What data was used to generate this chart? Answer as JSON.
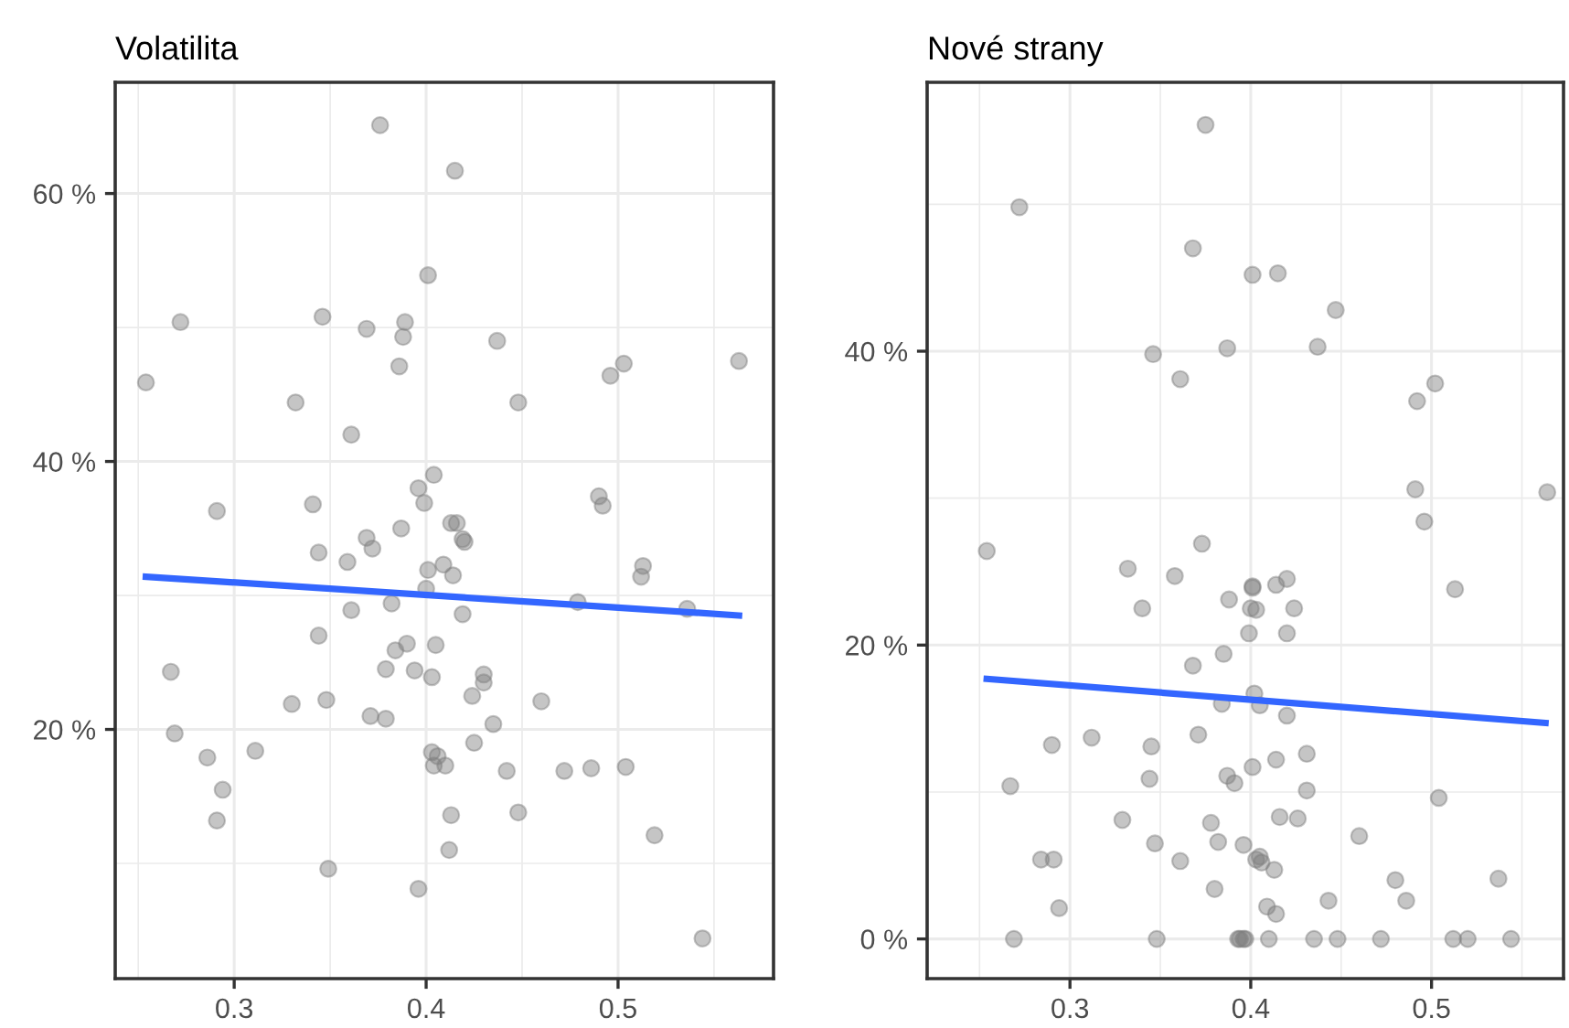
{
  "chart_data": [
    {
      "type": "scatter",
      "title": "Volatilita",
      "xlim": [
        0.238,
        0.581
      ],
      "ylim": [
        1.4,
        68.3
      ],
      "xticks": [
        0.3,
        0.4,
        0.5
      ],
      "yticks": [
        {
          "value": 20,
          "label": "20 %"
        },
        {
          "value": 40,
          "label": "40 %"
        },
        {
          "value": 60,
          "label": "60 %"
        }
      ],
      "grid": true,
      "marker": "circle",
      "series": [
        {
          "color": "#7f7f7f",
          "x": [
            0.376,
            0.401,
            0.272,
            0.346,
            0.369,
            0.389,
            0.388,
            0.386,
            0.254,
            0.332,
            0.361,
            0.404,
            0.396,
            0.399,
            0.291,
            0.341,
            0.387,
            0.369,
            0.372,
            0.344,
            0.359,
            0.401,
            0.4,
            0.382,
            0.361,
            0.344,
            0.39,
            0.384,
            0.405,
            0.379,
            0.394,
            0.403,
            0.267,
            0.33,
            0.348,
            0.371,
            0.379,
            0.269,
            0.311,
            0.286,
            0.403,
            0.404,
            0.294,
            0.291,
            0.349,
            0.396,
            0.415,
            0.437,
            0.503,
            0.496,
            0.563,
            0.448,
            0.49,
            0.492,
            0.413,
            0.416,
            0.419,
            0.42,
            0.409,
            0.414,
            0.513,
            0.512,
            0.419,
            0.479,
            0.536,
            0.43,
            0.43,
            0.424,
            0.46,
            0.435,
            0.425,
            0.406,
            0.41,
            0.442,
            0.472,
            0.486,
            0.504,
            0.413,
            0.448,
            0.519,
            0.412,
            0.544
          ],
          "values": [
            65.1,
            53.9,
            50.4,
            50.8,
            49.9,
            50.4,
            49.3,
            47.1,
            45.9,
            44.4,
            42.0,
            39.0,
            38.0,
            36.9,
            36.3,
            36.8,
            35.0,
            34.3,
            33.5,
            33.2,
            32.5,
            31.9,
            30.5,
            29.4,
            28.9,
            27.0,
            26.4,
            25.9,
            26.3,
            24.5,
            24.4,
            23.9,
            24.3,
            21.9,
            22.2,
            21.0,
            20.8,
            19.7,
            18.4,
            17.9,
            18.3,
            17.3,
            15.5,
            13.2,
            9.6,
            8.1,
            61.7,
            49.0,
            47.3,
            46.4,
            47.5,
            44.4,
            37.4,
            36.7,
            35.4,
            35.4,
            34.2,
            34.0,
            32.3,
            31.5,
            32.2,
            31.4,
            28.6,
            29.5,
            29.0,
            24.1,
            23.5,
            22.5,
            22.1,
            20.4,
            19.0,
            18.0,
            17.3,
            16.9,
            16.9,
            17.1,
            17.2,
            13.6,
            13.8,
            12.1,
            11.0,
            4.4
          ]
        },
        {
          "type": "line",
          "marker": "none",
          "color": "#3366ff",
          "x": [
            0.254,
            0.563
          ],
          "values": [
            31.4,
            28.5
          ]
        }
      ]
    },
    {
      "type": "scatter",
      "title": "Nové strany",
      "xlim": [
        0.221,
        0.573
      ],
      "ylim": [
        -2.7,
        58.3
      ],
      "xticks": [
        0.3,
        0.4,
        0.5
      ],
      "yticks": [
        {
          "value": 0,
          "label": "0 %"
        },
        {
          "value": 20,
          "label": "20 %"
        },
        {
          "value": 40,
          "label": "40 %"
        }
      ],
      "grid": true,
      "marker": "circle",
      "series": [
        {
          "color": "#7f7f7f",
          "x": [
            0.375,
            0.272,
            0.368,
            0.401,
            0.346,
            0.387,
            0.361,
            0.254,
            0.373,
            0.332,
            0.358,
            0.34,
            0.388,
            0.401,
            0.4,
            0.399,
            0.385,
            0.368,
            0.384,
            0.402,
            0.29,
            0.312,
            0.345,
            0.371,
            0.267,
            0.344,
            0.387,
            0.391,
            0.401,
            0.329,
            0.378,
            0.382,
            0.347,
            0.396,
            0.403,
            0.284,
            0.291,
            0.361,
            0.38,
            0.294,
            0.269,
            0.348,
            0.393,
            0.396,
            0.415,
            0.447,
            0.437,
            0.502,
            0.492,
            0.491,
            0.496,
            0.564,
            0.401,
            0.414,
            0.42,
            0.403,
            0.424,
            0.42,
            0.513,
            0.405,
            0.42,
            0.414,
            0.431,
            0.431,
            0.504,
            0.416,
            0.426,
            0.46,
            0.405,
            0.406,
            0.413,
            0.48,
            0.537,
            0.486,
            0.443,
            0.409,
            0.414,
            0.394,
            0.397,
            0.41,
            0.435,
            0.448,
            0.472,
            0.512,
            0.52,
            0.544
          ],
          "values": [
            55.4,
            49.8,
            47.0,
            45.2,
            39.8,
            40.2,
            38.1,
            26.4,
            26.9,
            25.2,
            24.7,
            22.5,
            23.1,
            24.0,
            22.5,
            20.8,
            19.4,
            18.6,
            16.0,
            16.7,
            13.2,
            13.7,
            13.1,
            13.9,
            10.4,
            10.9,
            11.1,
            10.6,
            11.7,
            8.1,
            7.9,
            6.6,
            6.5,
            6.4,
            5.4,
            5.4,
            5.4,
            5.3,
            3.4,
            2.1,
            0,
            0,
            0,
            0,
            45.3,
            42.8,
            40.3,
            37.8,
            36.6,
            30.6,
            28.4,
            30.4,
            23.9,
            24.1,
            24.5,
            22.4,
            22.5,
            20.8,
            23.8,
            15.9,
            15.2,
            12.2,
            12.6,
            10.1,
            9.6,
            8.3,
            8.2,
            7.0,
            5.6,
            5.2,
            4.7,
            4.0,
            4.1,
            2.6,
            2.6,
            2.2,
            1.7,
            0,
            0,
            0,
            0,
            0,
            0,
            0,
            0,
            0
          ]
        },
        {
          "type": "line",
          "marker": "none",
          "color": "#3366ff",
          "x": [
            0.254,
            0.563
          ],
          "values": [
            17.7,
            14.7
          ]
        }
      ]
    }
  ]
}
